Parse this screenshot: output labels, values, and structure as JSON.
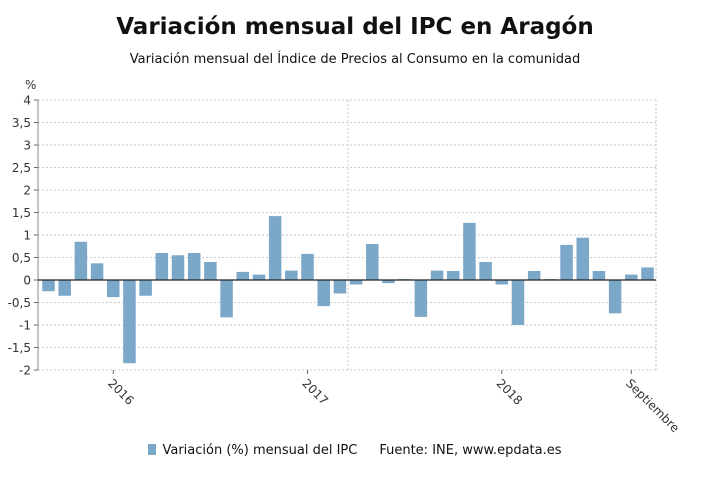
{
  "chart_data": {
    "type": "bar",
    "title": "Variación mensual del IPC en Aragón",
    "subtitle": "Variación mensual del Índice de Precios al Consumo en la comunidad",
    "ylabel": "%",
    "ylim": [
      -2,
      4
    ],
    "yticks": [
      "4",
      "3,5",
      "3",
      "2,5",
      "2",
      "1,5",
      "1",
      "0,5",
      "0",
      "-0,5",
      "-1",
      "-1,5",
      "-2"
    ],
    "xtick_labels": [
      {
        "label": "2016",
        "index": 4
      },
      {
        "label": "2017",
        "index": 16
      },
      {
        "label": "2018",
        "index": 28
      },
      {
        "label": "Septiembre",
        "index": 36
      }
    ],
    "grid": true,
    "bar_color": "#7ba7c9",
    "series": [
      {
        "name": "Variación (%) mensual del IPC",
        "values": [
          -0.25,
          -0.35,
          0.85,
          0.37,
          -0.38,
          -1.85,
          -0.35,
          0.6,
          0.55,
          0.6,
          0.4,
          -0.83,
          0.18,
          0.12,
          1.42,
          0.21,
          0.58,
          -0.58,
          -0.3,
          -0.1,
          0.8,
          -0.07,
          0.02,
          -0.82,
          0.21,
          0.2,
          1.27,
          0.4,
          -0.1,
          -1.0,
          0.2,
          0.02,
          0.78,
          0.94,
          0.2,
          -0.74,
          0.12,
          0.28
        ]
      }
    ],
    "legend": {
      "series_label": "Variación (%) mensual del IPC",
      "source": "Fuente: INE, www.epdata.es",
      "position": "bottom"
    }
  }
}
